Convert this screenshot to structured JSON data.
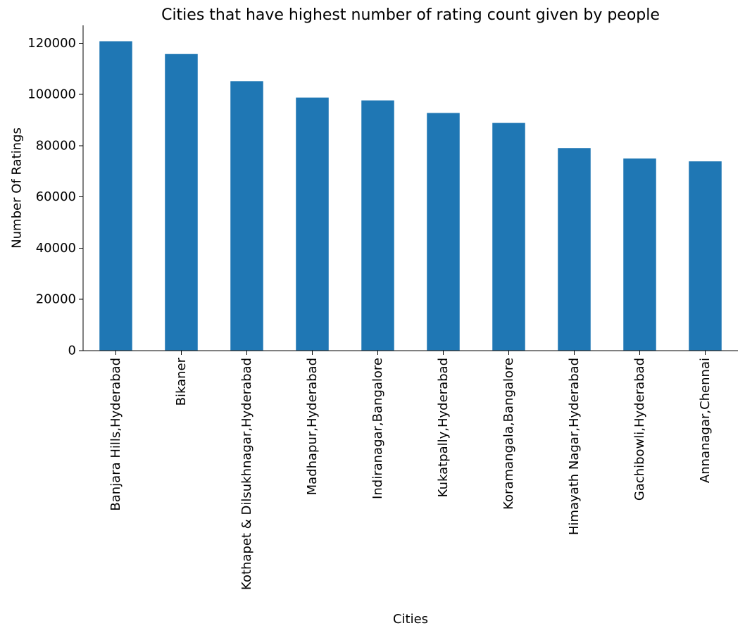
{
  "chart_data": {
    "type": "bar",
    "title": "Cities that have highest number of rating count given by people",
    "xlabel": "Cities",
    "ylabel": "Number Of Ratings",
    "categories": [
      "Banjara Hills,Hyderabad",
      "Bikaner",
      "Kothapet & Dilsukhnagar,Hyderabad",
      "Madhapur,Hyderabad",
      "Indiranagar,Bangalore",
      "Kukatpally,Hyderabad",
      "Koramangala,Bangalore",
      "Himayath Nagar,Hyderabad",
      "Gachibowli,Hyderabad",
      "Annanagar,Chennai"
    ],
    "values": [
      120800,
      115800,
      105200,
      98800,
      97700,
      92800,
      88900,
      79100,
      75000,
      73900
    ],
    "ylim": [
      0,
      127000
    ],
    "yticks": [
      0,
      20000,
      40000,
      60000,
      80000,
      100000,
      120000
    ],
    "ytick_labels": [
      "0",
      "20000",
      "40000",
      "60000",
      "80000",
      "100000",
      "120000"
    ],
    "grid": false,
    "color": "#1f77b4"
  }
}
